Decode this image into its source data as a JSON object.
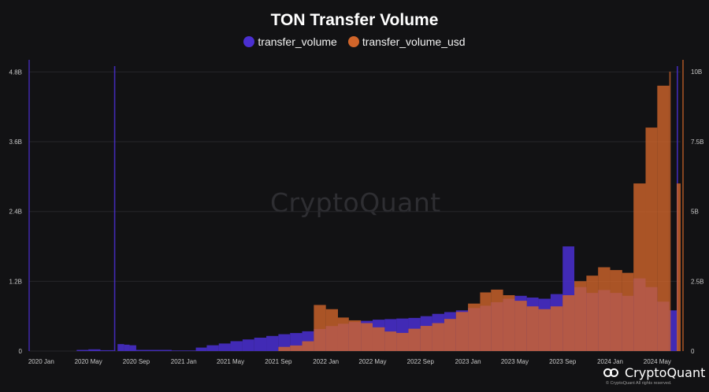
{
  "chart_data": {
    "type": "bar",
    "title": "TON Transfer Volume",
    "legend_placement": "top-center",
    "grid": true,
    "x_range": [
      "2019-12-01",
      "2024-06-30"
    ],
    "x_ticks": [
      "2020 Jan",
      "2020 May",
      "2020 Sep",
      "2021 Jan",
      "2021 May",
      "2021 Sep",
      "2022 Jan",
      "2022 May",
      "2022 Sep",
      "2023 Jan",
      "2023 May",
      "2023 Sep",
      "2024 Jan",
      "2024 May"
    ],
    "y_left": {
      "ticks": [
        "0",
        "1.2B",
        "2.4B",
        "3.6B",
        "4.8B"
      ],
      "range": [
        0,
        4900000000
      ]
    },
    "y_right": {
      "ticks": [
        "0",
        "2.5B",
        "5B",
        "7.5B",
        "10B"
      ],
      "range": [
        0,
        10200000000
      ]
    },
    "series": [
      {
        "name": "transfer_volume",
        "axis": "left",
        "color": "#4a2fd1",
        "points": [
          [
            "2020-04-01",
            20000000
          ],
          [
            "2020-05-01",
            30000000
          ],
          [
            "2020-06-01",
            15000000
          ],
          [
            "2020-07-06",
            4900000000
          ],
          [
            "2020-07-15",
            120000000
          ],
          [
            "2020-08-01",
            110000000
          ],
          [
            "2020-08-15",
            100000000
          ],
          [
            "2020-09-01",
            20000000
          ],
          [
            "2020-12-01",
            10000000
          ],
          [
            "2021-02-01",
            60000000
          ],
          [
            "2021-03-01",
            100000000
          ],
          [
            "2021-04-01",
            130000000
          ],
          [
            "2021-05-01",
            170000000
          ],
          [
            "2021-06-01",
            200000000
          ],
          [
            "2021-07-01",
            230000000
          ],
          [
            "2021-08-01",
            260000000
          ],
          [
            "2021-09-01",
            290000000
          ],
          [
            "2021-10-01",
            310000000
          ],
          [
            "2021-11-01",
            340000000
          ],
          [
            "2021-12-01",
            380000000
          ],
          [
            "2022-01-01",
            430000000
          ],
          [
            "2022-02-01",
            470000000
          ],
          [
            "2022-03-01",
            500000000
          ],
          [
            "2022-04-01",
            520000000
          ],
          [
            "2022-05-01",
            540000000
          ],
          [
            "2022-06-01",
            550000000
          ],
          [
            "2022-07-01",
            560000000
          ],
          [
            "2022-08-01",
            570000000
          ],
          [
            "2022-09-01",
            600000000
          ],
          [
            "2022-10-01",
            640000000
          ],
          [
            "2022-11-01",
            670000000
          ],
          [
            "2022-12-01",
            700000000
          ],
          [
            "2023-01-01",
            740000000
          ],
          [
            "2023-02-01",
            780000000
          ],
          [
            "2023-03-01",
            840000000
          ],
          [
            "2023-04-01",
            900000000
          ],
          [
            "2023-05-01",
            950000000
          ],
          [
            "2023-06-01",
            920000000
          ],
          [
            "2023-07-01",
            900000000
          ],
          [
            "2023-08-01",
            980000000
          ],
          [
            "2023-09-01",
            1800000000
          ],
          [
            "2023-10-01",
            1100000000
          ],
          [
            "2023-11-01",
            1000000000
          ],
          [
            "2023-12-01",
            1050000000
          ],
          [
            "2024-01-01",
            1000000000
          ],
          [
            "2024-02-01",
            950000000
          ],
          [
            "2024-03-01",
            1250000000
          ],
          [
            "2024-04-01",
            1100000000
          ],
          [
            "2024-05-01",
            850000000
          ],
          [
            "2024-06-01",
            700000000
          ],
          [
            "2024-06-20",
            4900000000
          ]
        ]
      },
      {
        "name": "transfer_volume_usd",
        "axis": "right",
        "color": "#d1652a",
        "points": [
          [
            "2021-09-01",
            150000000
          ],
          [
            "2021-10-01",
            200000000
          ],
          [
            "2021-11-01",
            350000000
          ],
          [
            "2021-12-01",
            1650000000
          ],
          [
            "2022-01-01",
            1500000000
          ],
          [
            "2022-02-01",
            1200000000
          ],
          [
            "2022-03-01",
            1100000000
          ],
          [
            "2022-04-01",
            1000000000
          ],
          [
            "2022-05-01",
            850000000
          ],
          [
            "2022-06-01",
            700000000
          ],
          [
            "2022-07-01",
            650000000
          ],
          [
            "2022-08-01",
            800000000
          ],
          [
            "2022-09-01",
            900000000
          ],
          [
            "2022-10-01",
            1000000000
          ],
          [
            "2022-11-01",
            1150000000
          ],
          [
            "2022-12-01",
            1400000000
          ],
          [
            "2023-01-01",
            1700000000
          ],
          [
            "2023-02-01",
            2100000000
          ],
          [
            "2023-03-01",
            2200000000
          ],
          [
            "2023-04-01",
            2000000000
          ],
          [
            "2023-05-01",
            1800000000
          ],
          [
            "2023-06-01",
            1600000000
          ],
          [
            "2023-07-01",
            1500000000
          ],
          [
            "2023-08-01",
            1600000000
          ],
          [
            "2023-09-01",
            2000000000
          ],
          [
            "2023-10-01",
            2500000000
          ],
          [
            "2023-11-01",
            2700000000
          ],
          [
            "2023-12-01",
            3000000000
          ],
          [
            "2024-01-01",
            2900000000
          ],
          [
            "2024-02-01",
            2800000000
          ],
          [
            "2024-03-01",
            6000000000
          ],
          [
            "2024-04-01",
            8000000000
          ],
          [
            "2024-05-01",
            9500000000
          ],
          [
            "2024-06-01",
            10000000000
          ],
          [
            "2024-06-20",
            6000000000
          ]
        ]
      }
    ]
  },
  "legend": {
    "items": [
      {
        "label": "transfer_volume",
        "color": "#4a2fd1"
      },
      {
        "label": "transfer_volume_usd",
        "color": "#d1652a"
      }
    ]
  },
  "watermark": "CryptoQuant",
  "brand": {
    "name": "CryptoQuant",
    "copyright": "© CryptoQuant All rights reserved."
  }
}
